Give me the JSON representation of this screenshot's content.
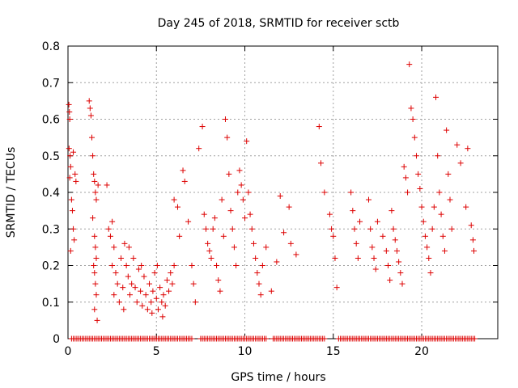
{
  "chart_data": {
    "type": "scatter",
    "title": "Day 245 of 2018, SRMTID for receiver sctb",
    "xlabel": "GPS time / hours",
    "ylabel": "SRMTID / TECUs",
    "xlim": [
      0,
      24.3
    ],
    "ylim": [
      0,
      0.8
    ],
    "x_ticks": [
      0,
      5,
      10,
      15,
      20
    ],
    "y_ticks": [
      0,
      0.1,
      0.2,
      0.3,
      0.4,
      0.5,
      0.6,
      0.7,
      0.8
    ],
    "x_tick_labels": [
      "0",
      "5",
      "10",
      "15",
      "20"
    ],
    "y_tick_labels": [
      "0",
      "0.1",
      "0.2",
      "0.3",
      "0.4",
      "0.5",
      "0.6",
      "0.7",
      "0.8"
    ],
    "grid": true,
    "marker": "+",
    "color": "#dd0000",
    "series": [
      {
        "name": "SRMTID",
        "points": [
          [
            0.05,
            0.64
          ],
          [
            0.08,
            0.62
          ],
          [
            0.1,
            0.6
          ],
          [
            0.06,
            0.52
          ],
          [
            0.12,
            0.5
          ],
          [
            0.15,
            0.47
          ],
          [
            0.1,
            0.44
          ],
          [
            0.2,
            0.38
          ],
          [
            0.25,
            0.35
          ],
          [
            0.3,
            0.3
          ],
          [
            0.15,
            0.24
          ],
          [
            0.35,
            0.27
          ],
          [
            0.4,
            0.45
          ],
          [
            0.45,
            0.43
          ],
          [
            0.3,
            0.51
          ],
          [
            1.2,
            0.65
          ],
          [
            1.25,
            0.63
          ],
          [
            1.3,
            0.61
          ],
          [
            1.35,
            0.55
          ],
          [
            1.4,
            0.5
          ],
          [
            1.45,
            0.45
          ],
          [
            1.5,
            0.43
          ],
          [
            1.55,
            0.4
          ],
          [
            1.6,
            0.38
          ],
          [
            1.4,
            0.33
          ],
          [
            1.5,
            0.28
          ],
          [
            1.55,
            0.25
          ],
          [
            1.6,
            0.22
          ],
          [
            1.5,
            0.18
          ],
          [
            1.55,
            0.15
          ],
          [
            1.6,
            0.12
          ],
          [
            1.5,
            0.08
          ],
          [
            1.65,
            0.05
          ],
          [
            1.7,
            0.42
          ],
          [
            1.45,
            0.2
          ],
          [
            2.2,
            0.42
          ],
          [
            2.3,
            0.3
          ],
          [
            2.4,
            0.28
          ],
          [
            2.5,
            0.32
          ],
          [
            2.6,
            0.25
          ],
          [
            2.5,
            0.2
          ],
          [
            2.7,
            0.18
          ],
          [
            2.8,
            0.15
          ],
          [
            2.6,
            0.12
          ],
          [
            2.9,
            0.1
          ],
          [
            3.0,
            0.22
          ],
          [
            3.1,
            0.14
          ],
          [
            3.2,
            0.26
          ],
          [
            3.3,
            0.2
          ],
          [
            3.4,
            0.17
          ],
          [
            3.5,
            0.12
          ],
          [
            3.6,
            0.15
          ],
          [
            3.7,
            0.22
          ],
          [
            3.8,
            0.14
          ],
          [
            3.9,
            0.1
          ],
          [
            4.0,
            0.19
          ],
          [
            4.1,
            0.13
          ],
          [
            4.2,
            0.09
          ],
          [
            4.3,
            0.17
          ],
          [
            4.4,
            0.12
          ],
          [
            4.5,
            0.08
          ],
          [
            4.6,
            0.15
          ],
          [
            4.7,
            0.1
          ],
          [
            4.8,
            0.13
          ],
          [
            4.9,
            0.18
          ],
          [
            5.0,
            0.11
          ],
          [
            5.1,
            0.08
          ],
          [
            5.2,
            0.14
          ],
          [
            5.3,
            0.1
          ],
          [
            5.4,
            0.12
          ],
          [
            5.5,
            0.09
          ],
          [
            5.6,
            0.16
          ],
          [
            5.7,
            0.13
          ],
          [
            5.8,
            0.18
          ],
          [
            5.9,
            0.15
          ],
          [
            6.0,
            0.2
          ],
          [
            3.15,
            0.08
          ],
          [
            3.45,
            0.25
          ],
          [
            4.15,
            0.2
          ],
          [
            4.75,
            0.07
          ],
          [
            5.05,
            0.2
          ],
          [
            5.35,
            0.06
          ],
          [
            6.0,
            0.38
          ],
          [
            6.2,
            0.36
          ],
          [
            6.3,
            0.28
          ],
          [
            6.5,
            0.46
          ],
          [
            6.6,
            0.43
          ],
          [
            6.8,
            0.32
          ],
          [
            7.0,
            0.2
          ],
          [
            7.1,
            0.15
          ],
          [
            7.2,
            0.1
          ],
          [
            7.4,
            0.52
          ],
          [
            7.6,
            0.58
          ],
          [
            7.7,
            0.34
          ],
          [
            7.8,
            0.3
          ],
          [
            7.9,
            0.26
          ],
          [
            8.0,
            0.24
          ],
          [
            8.1,
            0.22
          ],
          [
            8.2,
            0.3
          ],
          [
            8.3,
            0.33
          ],
          [
            8.4,
            0.2
          ],
          [
            8.5,
            0.16
          ],
          [
            8.6,
            0.13
          ],
          [
            8.7,
            0.38
          ],
          [
            8.8,
            0.28
          ],
          [
            8.9,
            0.6
          ],
          [
            9.0,
            0.55
          ],
          [
            9.1,
            0.45
          ],
          [
            9.2,
            0.35
          ],
          [
            9.3,
            0.3
          ],
          [
            9.4,
            0.25
          ],
          [
            9.5,
            0.2
          ],
          [
            9.6,
            0.4
          ],
          [
            9.7,
            0.46
          ],
          [
            9.8,
            0.42
          ],
          [
            9.9,
            0.38
          ],
          [
            10.0,
            0.33
          ],
          [
            10.1,
            0.54
          ],
          [
            10.2,
            0.4
          ],
          [
            10.3,
            0.34
          ],
          [
            10.4,
            0.3
          ],
          [
            10.5,
            0.26
          ],
          [
            10.6,
            0.22
          ],
          [
            10.7,
            0.18
          ],
          [
            10.8,
            0.15
          ],
          [
            10.9,
            0.12
          ],
          [
            11.0,
            0.2
          ],
          [
            11.2,
            0.25
          ],
          [
            11.5,
            0.13
          ],
          [
            11.8,
            0.21
          ],
          [
            12.0,
            0.39
          ],
          [
            12.2,
            0.29
          ],
          [
            12.5,
            0.36
          ],
          [
            12.6,
            0.26
          ],
          [
            12.9,
            0.23
          ],
          [
            14.2,
            0.58
          ],
          [
            14.3,
            0.48
          ],
          [
            14.5,
            0.4
          ],
          [
            14.8,
            0.34
          ],
          [
            14.9,
            0.3
          ],
          [
            15.0,
            0.28
          ],
          [
            15.1,
            0.22
          ],
          [
            15.2,
            0.14
          ],
          [
            16.0,
            0.4
          ],
          [
            16.1,
            0.35
          ],
          [
            16.2,
            0.3
          ],
          [
            16.3,
            0.26
          ],
          [
            16.4,
            0.22
          ],
          [
            16.5,
            0.32
          ],
          [
            17.0,
            0.38
          ],
          [
            17.1,
            0.3
          ],
          [
            17.2,
            0.25
          ],
          [
            17.3,
            0.22
          ],
          [
            17.4,
            0.19
          ],
          [
            17.5,
            0.32
          ],
          [
            17.8,
            0.28
          ],
          [
            18.0,
            0.24
          ],
          [
            18.1,
            0.2
          ],
          [
            18.2,
            0.16
          ],
          [
            18.3,
            0.35
          ],
          [
            18.4,
            0.3
          ],
          [
            18.5,
            0.27
          ],
          [
            18.6,
            0.24
          ],
          [
            18.7,
            0.21
          ],
          [
            18.8,
            0.18
          ],
          [
            18.9,
            0.15
          ],
          [
            19.0,
            0.47
          ],
          [
            19.1,
            0.44
          ],
          [
            19.2,
            0.4
          ],
          [
            19.3,
            0.75
          ],
          [
            19.4,
            0.63
          ],
          [
            19.5,
            0.6
          ],
          [
            19.6,
            0.55
          ],
          [
            19.7,
            0.5
          ],
          [
            19.8,
            0.45
          ],
          [
            19.9,
            0.41
          ],
          [
            20.0,
            0.36
          ],
          [
            20.1,
            0.32
          ],
          [
            20.2,
            0.28
          ],
          [
            20.3,
            0.25
          ],
          [
            20.4,
            0.22
          ],
          [
            20.5,
            0.18
          ],
          [
            20.6,
            0.3
          ],
          [
            20.7,
            0.36
          ],
          [
            20.8,
            0.66
          ],
          [
            20.9,
            0.5
          ],
          [
            21.0,
            0.4
          ],
          [
            21.1,
            0.34
          ],
          [
            21.2,
            0.28
          ],
          [
            21.3,
            0.24
          ],
          [
            21.4,
            0.57
          ],
          [
            21.5,
            0.45
          ],
          [
            21.6,
            0.38
          ],
          [
            21.7,
            0.3
          ],
          [
            22.0,
            0.53
          ],
          [
            22.2,
            0.48
          ],
          [
            22.5,
            0.36
          ],
          [
            22.6,
            0.52
          ],
          [
            22.8,
            0.31
          ],
          [
            22.9,
            0.27
          ],
          [
            22.95,
            0.24
          ]
        ],
        "zero_x_ranges": [
          [
            0.2,
            7.0
          ],
          [
            7.5,
            11.2
          ],
          [
            11.6,
            14.5
          ],
          [
            15.3,
            23.0
          ]
        ]
      }
    ]
  }
}
